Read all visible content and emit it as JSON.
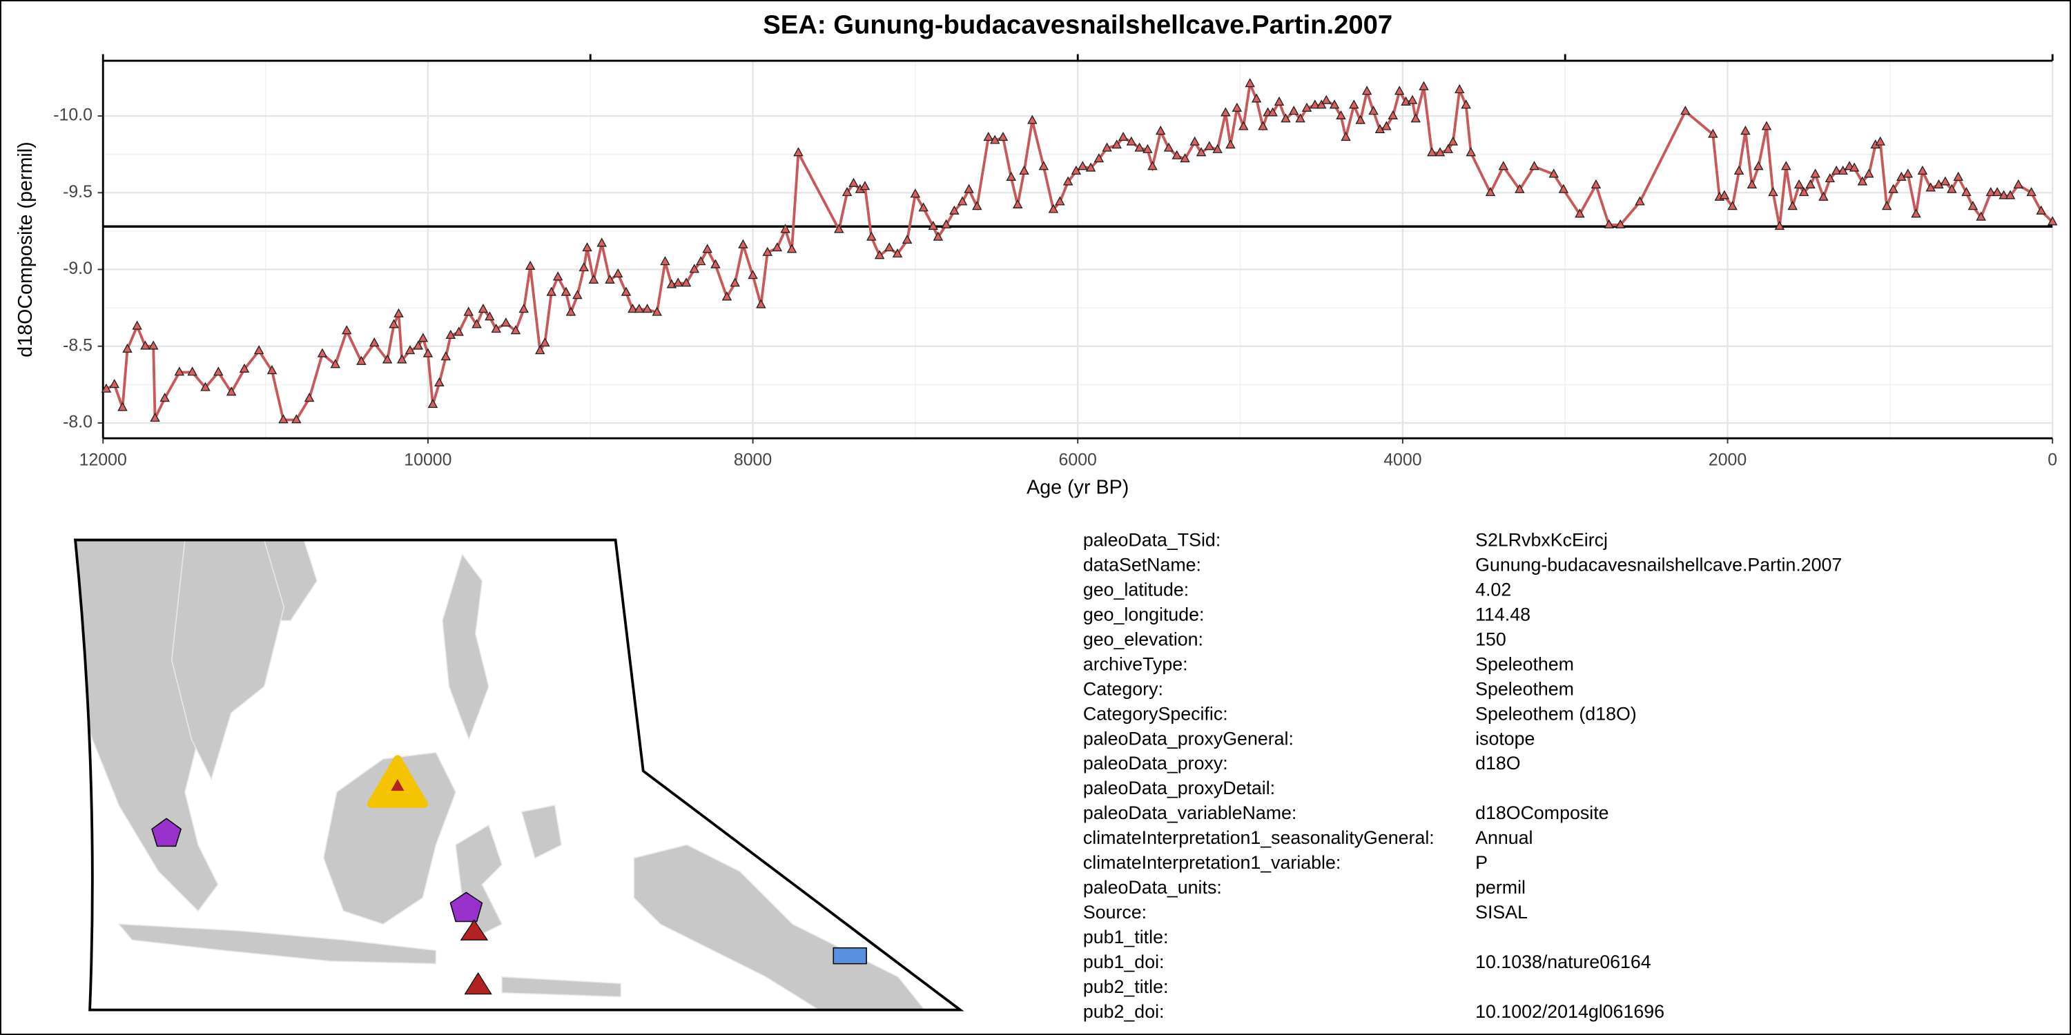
{
  "chart_data": {
    "type": "line",
    "title": "SEA: Gunung-budacavesnailshellcave.Partin.2007",
    "xlabel": "Age (yr BP)",
    "ylabel": "d18OComposite (permil)",
    "xlim": [
      12000,
      0
    ],
    "ylim": [
      -7.9,
      -10.36
    ],
    "xticks": [
      12000,
      10000,
      8000,
      6000,
      4000,
      2000,
      0
    ],
    "x2ticks": [
      12000,
      9000,
      6000,
      3000,
      0
    ],
    "yticks": [
      {
        "value": -10,
        "label": "-10.0"
      },
      -9.5,
      {
        "value": -9,
        "label": "-9.0"
      },
      -8.5,
      {
        "value": -8,
        "label": "-8.0"
      }
    ],
    "grid": true,
    "color": "#c8585a",
    "marker_color": "#d9605f",
    "hline": -9.28,
    "hline_color": "#000000",
    "x": [
      11980,
      11930,
      11880,
      11850,
      11790,
      11740,
      11690,
      11680,
      11620,
      11530,
      11450,
      11370,
      11290,
      11210,
      11130,
      11040,
      10960,
      10890,
      10810,
      10730,
      10650,
      10570,
      10500,
      10410,
      10330,
      10250,
      10210,
      10180,
      10160,
      10110,
      10060,
      10030,
      10000,
      9970,
      9930,
      9890,
      9860,
      9810,
      9750,
      9700,
      9660,
      9620,
      9580,
      9520,
      9460,
      9410,
      9370,
      9310,
      9280,
      9240,
      9200,
      9150,
      9120,
      9080,
      9040,
      9020,
      8980,
      8930,
      8880,
      8830,
      8780,
      8740,
      8700,
      8650,
      8590,
      8540,
      8500,
      8460,
      8410,
      8360,
      8320,
      8280,
      8230,
      8160,
      8110,
      8060,
      8000,
      7950,
      7910,
      7850,
      7800,
      7760,
      7720,
      7470,
      7420,
      7380,
      7340,
      7310,
      7270,
      7220,
      7160,
      7110,
      7050,
      7000,
      6950,
      6890,
      6860,
      6810,
      6760,
      6710,
      6670,
      6620,
      6550,
      6510,
      6460,
      6410,
      6370,
      6330,
      6280,
      6210,
      6150,
      6110,
      6060,
      6010,
      5970,
      5920,
      5870,
      5820,
      5760,
      5720,
      5670,
      5620,
      5570,
      5540,
      5490,
      5440,
      5390,
      5340,
      5280,
      5240,
      5190,
      5140,
      5090,
      5060,
      5020,
      4980,
      4940,
      4900,
      4860,
      4830,
      4800,
      4760,
      4720,
      4670,
      4630,
      4590,
      4540,
      4500,
      4470,
      4420,
      4380,
      4350,
      4300,
      4260,
      4220,
      4180,
      4140,
      4100,
      4060,
      4020,
      3980,
      3940,
      3920,
      3870,
      3820,
      3770,
      3720,
      3690,
      3650,
      3610,
      3580,
      3460,
      3380,
      3280,
      3190,
      3070,
      3010,
      2910,
      2810,
      2730,
      2660,
      2540,
      2260,
      2090,
      2050,
      2020,
      1970,
      1930,
      1890,
      1850,
      1810,
      1760,
      1720,
      1680,
      1640,
      1600,
      1560,
      1530,
      1490,
      1460,
      1410,
      1370,
      1330,
      1290,
      1250,
      1220,
      1170,
      1130,
      1090,
      1060,
      1020,
      980,
      930,
      890,
      840,
      800,
      750,
      700,
      660,
      620,
      580,
      530,
      490,
      440,
      380,
      340,
      300,
      260,
      210,
      130,
      70,
      0
    ],
    "values": [
      -8.22,
      -8.25,
      -8.1,
      -8.48,
      -8.63,
      -8.5,
      -8.5,
      -8.03,
      -8.16,
      -8.33,
      -8.33,
      -8.23,
      -8.33,
      -8.2,
      -8.35,
      -8.47,
      -8.34,
      -8.02,
      -8.02,
      -8.16,
      -8.45,
      -8.38,
      -8.6,
      -8.4,
      -8.52,
      -8.41,
      -8.64,
      -8.71,
      -8.41,
      -8.47,
      -8.5,
      -8.55,
      -8.45,
      -8.12,
      -8.26,
      -8.43,
      -8.57,
      -8.59,
      -8.72,
      -8.64,
      -8.74,
      -8.69,
      -8.61,
      -8.65,
      -8.6,
      -8.74,
      -9.02,
      -8.47,
      -8.52,
      -8.85,
      -8.95,
      -8.85,
      -8.72,
      -8.83,
      -9.01,
      -9.14,
      -8.93,
      -9.17,
      -8.93,
      -8.97,
      -8.85,
      -8.74,
      -8.74,
      -8.74,
      -8.72,
      -9.05,
      -8.9,
      -8.91,
      -8.91,
      -9.0,
      -9.05,
      -9.13,
      -9.03,
      -8.82,
      -8.91,
      -9.16,
      -8.96,
      -8.77,
      -9.11,
      -9.14,
      -9.26,
      -9.13,
      -9.76,
      -9.26,
      -9.5,
      -9.56,
      -9.52,
      -9.54,
      -9.21,
      -9.09,
      -9.14,
      -9.1,
      -9.19,
      -9.49,
      -9.4,
      -9.28,
      -9.21,
      -9.29,
      -9.38,
      -9.44,
      -9.52,
      -9.41,
      -9.86,
      -9.84,
      -9.86,
      -9.6,
      -9.42,
      -9.64,
      -9.97,
      -9.67,
      -9.39,
      -9.44,
      -9.57,
      -9.64,
      -9.67,
      -9.66,
      -9.72,
      -9.79,
      -9.81,
      -9.86,
      -9.83,
      -9.79,
      -9.78,
      -9.67,
      -9.9,
      -9.79,
      -9.74,
      -9.72,
      -9.83,
      -9.76,
      -9.8,
      -9.78,
      -10.02,
      -9.81,
      -10.05,
      -9.93,
      -10.21,
      -10.11,
      -9.93,
      -10.02,
      -10.02,
      -10.09,
      -9.98,
      -10.03,
      -9.98,
      -10.05,
      -10.07,
      -10.07,
      -10.1,
      -10.07,
      -10.0,
      -9.86,
      -10.07,
      -9.97,
      -10.16,
      -10.03,
      -9.91,
      -9.93,
      -10.0,
      -10.16,
      -10.09,
      -10.1,
      -9.98,
      -10.19,
      -9.76,
      -9.76,
      -9.78,
      -9.83,
      -10.17,
      -10.07,
      -9.76,
      -9.5,
      -9.67,
      -9.52,
      -9.67,
      -9.62,
      -9.52,
      -9.36,
      -9.55,
      -9.29,
      -9.29,
      -9.44,
      -10.03,
      -9.88,
      -9.47,
      -9.48,
      -9.41,
      -9.64,
      -9.9,
      -9.55,
      -9.67,
      -9.93,
      -9.5,
      -9.28,
      -9.67,
      -9.41,
      -9.55,
      -9.5,
      -9.55,
      -9.62,
      -9.47,
      -9.59,
      -9.64,
      -9.64,
      -9.67,
      -9.66,
      -9.57,
      -9.62,
      -9.81,
      -9.83,
      -9.41,
      -9.52,
      -9.6,
      -9.62,
      -9.36,
      -9.64,
      -9.53,
      -9.55,
      -9.57,
      -9.52,
      -9.6,
      -9.5,
      -9.41,
      -9.34,
      -9.5,
      -9.5,
      -9.48,
      -9.48,
      -9.55,
      -9.5,
      -9.38,
      -9.31
    ]
  },
  "metadata": {
    "rows": [
      [
        "paleoData_TSid:",
        "S2LRvbxKcEircj"
      ],
      [
        "dataSetName:",
        "Gunung-budacavesnailshellcave.Partin.2007"
      ],
      [
        "geo_latitude:",
        "4.02"
      ],
      [
        "geo_longitude:",
        "114.48"
      ],
      [
        "geo_elevation:",
        "150"
      ],
      [
        "archiveType:",
        "Speleothem"
      ],
      [
        "Category:",
        "Speleothem"
      ],
      [
        "CategorySpecific:",
        "Speleothem (d18O)"
      ],
      [
        "paleoData_proxyGeneral:",
        "isotope"
      ],
      [
        "paleoData_proxy:",
        "d18O"
      ],
      [
        "paleoData_proxyDetail:"
      ],
      [
        "paleoData_variableName:",
        "d18OComposite"
      ],
      [
        "climateInterpretation1_seasonalityGeneral:",
        "Annual"
      ],
      [
        "climateInterpretation1_variable:",
        "P"
      ],
      [
        "paleoData_units:",
        "permil"
      ],
      [
        "Source:",
        "SISAL"
      ],
      [
        "pub1_title:"
      ],
      [
        "pub1_doi:",
        "10.1038/nature06164"
      ],
      [
        "pub2_title:"
      ],
      [
        "pub2_doi:",
        "10.1002/2014gl061696"
      ]
    ]
  }
}
